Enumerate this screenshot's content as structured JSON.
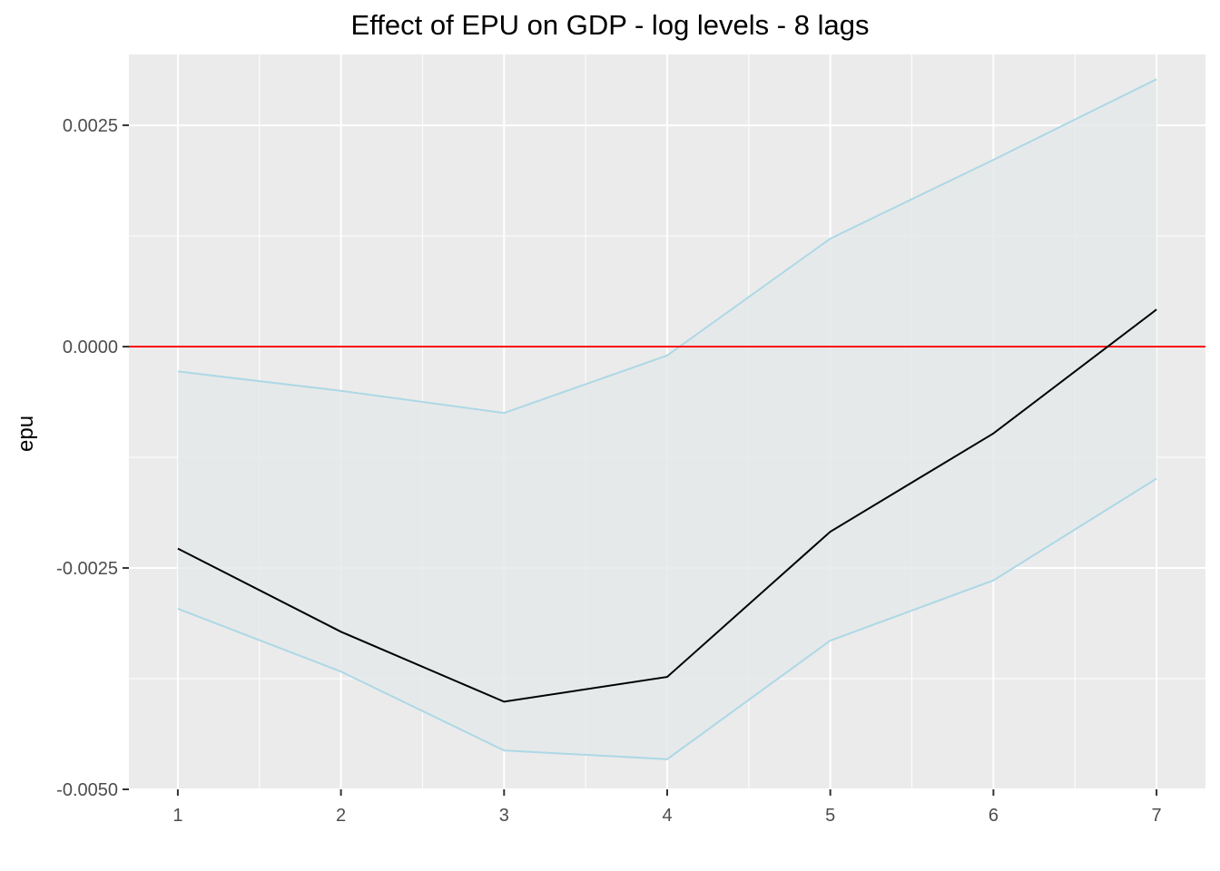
{
  "chart_data": {
    "type": "line",
    "title": "Effect of EPU on GDP - log levels - 8 lags",
    "xlabel": "",
    "ylabel": "epu",
    "x": [
      1,
      2,
      3,
      4,
      5,
      6,
      7
    ],
    "series": [
      {
        "values": [
          -0.00228,
          -0.00322,
          -0.00401,
          -0.00373,
          -0.00209,
          -0.00098,
          0.00042
        ]
      },
      {
        "values": [
          -0.00028,
          -0.0005,
          -0.00075,
          -0.0001,
          0.00122,
          0.00211,
          0.00302
        ]
      },
      {
        "values": [
          -0.00296,
          -0.00367,
          -0.00456,
          -0.00466,
          -0.00332,
          -0.00264,
          -0.00149
        ]
      }
    ],
    "reference_line": {
      "y": 0.0,
      "color": "#ff0000"
    },
    "xlim": [
      0.7,
      7.3
    ],
    "ylim": [
      -0.005,
      0.0033
    ],
    "x_ticks": [
      "1",
      "2",
      "3",
      "4",
      "5",
      "6",
      "7"
    ],
    "y_ticks": [
      "-0.0050",
      "-0.0025",
      "0.0000",
      "0.0025"
    ],
    "y_tick_values": [
      -0.005,
      -0.0025,
      0.0,
      0.0025
    ],
    "grid": true,
    "colors": {
      "panel": "#ebebeb",
      "grid": "#ffffff",
      "line": "#000000",
      "band": "#add8e6",
      "band_fill": "#e5e9ea"
    }
  }
}
